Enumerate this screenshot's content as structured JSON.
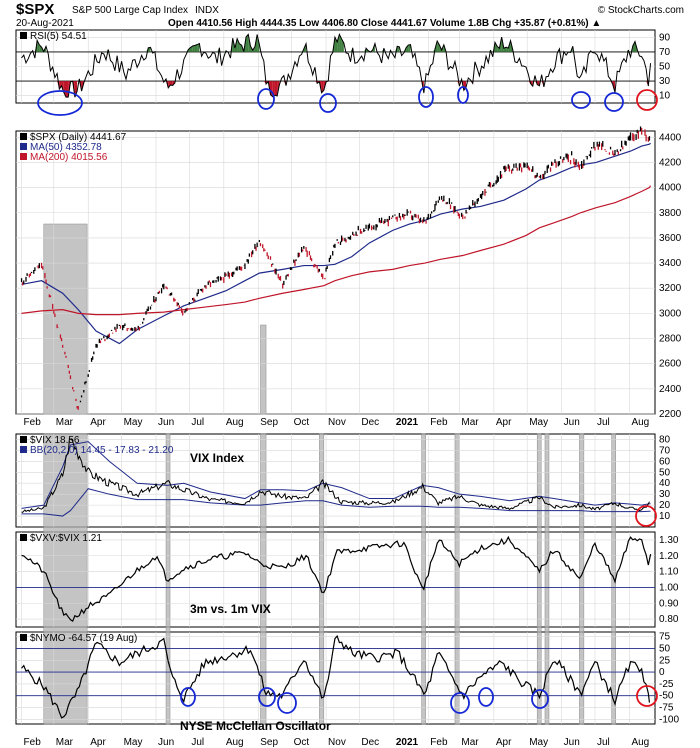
{
  "header": {
    "symbol": "$SPX",
    "description": "S&P 500 Large Cap Index",
    "exchange": "INDX",
    "date": "20-Aug-2021",
    "watermark": "© StockCharts.com",
    "quote": "Open 4410.56  High 4444.35  Low 4406.80  Close 4441.67  Volume 1.8B  Chg +35.87 (+0.81%) ▲"
  },
  "colors": {
    "price_line": "#000000",
    "ma50": "#1f2a8a",
    "ma200": "#c0162a",
    "bar_up": "#000000",
    "bar_down": "#c0162a",
    "rsi_overbought": "#3f7f3f",
    "rsi_oversold": "#c0162a",
    "highlight": "#b0b0b0",
    "circle_blue": "#1428d6",
    "circle_red": "#e0141e"
  },
  "x_axis": {
    "ticks": [
      "Feb",
      "Mar",
      "Apr",
      "May",
      "Jun",
      "Jul",
      "Aug",
      "Sep",
      "Oct",
      "Nov",
      "Dec",
      "2021",
      "Feb",
      "Mar",
      "Apr",
      "May",
      "Jun",
      "Jul",
      "Aug"
    ]
  },
  "highlight_bands": [
    {
      "start": "2020-02-21",
      "end": "2020-03-31"
    },
    {
      "start": "2020-06-10",
      "end": "2020-06-12"
    },
    {
      "start": "2020-09-03",
      "end": "2020-09-08"
    },
    {
      "start": "2020-10-26",
      "end": "2020-10-30"
    },
    {
      "start": "2021-01-26",
      "end": "2021-01-29"
    },
    {
      "start": "2021-02-25",
      "end": "2021-03-01"
    },
    {
      "start": "2021-05-10",
      "end": "2021-05-12"
    },
    {
      "start": "2021-05-17",
      "end": "2021-05-18"
    },
    {
      "start": "2021-06-17",
      "end": "2021-06-21"
    },
    {
      "start": "2021-07-16",
      "end": "2021-07-19"
    }
  ],
  "chart_data": [
    {
      "type": "line",
      "panel": "rsi",
      "legend": "RSI(5) 54.51",
      "ylim": [
        0,
        100
      ],
      "yticks": [
        10,
        30,
        50,
        70,
        90
      ],
      "reference_lines": [
        30,
        70
      ],
      "x": [
        "2020-02-01",
        "2020-02-20",
        "2020-03-10",
        "2020-03-23",
        "2020-04-15",
        "2020-05-05",
        "2020-05-25",
        "2020-06-11",
        "2020-06-26",
        "2020-07-10",
        "2020-07-25",
        "2020-08-10",
        "2020-08-31",
        "2020-09-10",
        "2020-09-23",
        "2020-10-12",
        "2020-10-30",
        "2020-11-10",
        "2020-11-25",
        "2020-12-10",
        "2020-12-28",
        "2021-01-15",
        "2021-01-29",
        "2021-02-10",
        "2021-03-04",
        "2021-03-20",
        "2021-04-10",
        "2021-04-25",
        "2021-05-12",
        "2021-05-25",
        "2021-06-10",
        "2021-06-18",
        "2021-07-01",
        "2021-07-19",
        "2021-08-01",
        "2021-08-12",
        "2021-08-19",
        "2021-08-20"
      ],
      "values": [
        62,
        80,
        15,
        18,
        72,
        40,
        78,
        20,
        52,
        80,
        60,
        76,
        88,
        20,
        25,
        80,
        18,
        90,
        65,
        74,
        60,
        72,
        22,
        82,
        25,
        52,
        84,
        60,
        22,
        58,
        78,
        24,
        80,
        24,
        74,
        68,
        28,
        54.51
      ]
    },
    {
      "type": "line",
      "panel": "price",
      "legend": [
        "$SPX (Daily) 4441.67",
        "MA(50) 4352.78",
        "MA(200) 4015.56"
      ],
      "ylim": [
        2200,
        4450
      ],
      "yticks": [
        2200,
        2400,
        2600,
        2800,
        3000,
        3200,
        3400,
        3600,
        3800,
        4000,
        4200,
        4400
      ],
      "x": [
        "2020-02-01",
        "2020-02-19",
        "2020-03-09",
        "2020-03-23",
        "2020-04-08",
        "2020-04-29",
        "2020-05-15",
        "2020-06-08",
        "2020-06-26",
        "2020-07-15",
        "2020-08-03",
        "2020-08-20",
        "2020-09-02",
        "2020-09-23",
        "2020-10-12",
        "2020-10-30",
        "2020-11-09",
        "2020-11-24",
        "2020-12-10",
        "2020-12-31",
        "2021-01-15",
        "2021-01-29",
        "2021-02-12",
        "2021-03-04",
        "2021-03-20",
        "2021-04-10",
        "2021-04-30",
        "2021-05-12",
        "2021-05-25",
        "2021-06-10",
        "2021-06-18",
        "2021-07-02",
        "2021-07-19",
        "2021-08-02",
        "2021-08-12",
        "2021-08-19",
        "2021-08-20"
      ],
      "series": [
        {
          "name": "$SPX (Daily) 4441.67",
          "values": [
            3250,
            3386,
            2750,
            2237,
            2750,
            2900,
            2870,
            3230,
            3010,
            3220,
            3290,
            3390,
            3580,
            3230,
            3530,
            3270,
            3550,
            3630,
            3680,
            3756,
            3790,
            3715,
            3935,
            3770,
            3930,
            4130,
            4190,
            4063,
            4200,
            4240,
            4165,
            4350,
            4260,
            4390,
            4460,
            4400,
            4441.67
          ]
        },
        {
          "name": "MA(50) 4352.78",
          "values": [
            3230,
            3260,
            3160,
            3030,
            2860,
            2760,
            2870,
            2980,
            3060,
            3120,
            3180,
            3260,
            3320,
            3350,
            3380,
            3380,
            3390,
            3450,
            3560,
            3660,
            3710,
            3740,
            3790,
            3830,
            3850,
            3900,
            3990,
            4060,
            4100,
            4160,
            4180,
            4200,
            4250,
            4290,
            4330,
            4345,
            4352.78
          ]
        },
        {
          "name": "MA(200) 4015.56",
          "values": [
            3000,
            3020,
            3030,
            3000,
            2990,
            2990,
            3000,
            3010,
            3030,
            3050,
            3070,
            3090,
            3120,
            3160,
            3190,
            3220,
            3260,
            3300,
            3330,
            3350,
            3380,
            3400,
            3430,
            3460,
            3500,
            3550,
            3620,
            3680,
            3720,
            3770,
            3800,
            3840,
            3880,
            3930,
            3970,
            4000,
            4015.56
          ]
        }
      ]
    },
    {
      "type": "line",
      "panel": "vix",
      "legend": [
        "$VIX 18.56",
        "BB(20,2.0) 14.45 - 17.83 - 21.20"
      ],
      "annotation": "VIX Index",
      "ylim": [
        0,
        85
      ],
      "yticks": [
        10,
        20,
        30,
        40,
        50,
        60,
        70,
        80
      ],
      "x": [
        "2020-02-01",
        "2020-02-21",
        "2020-03-09",
        "2020-03-16",
        "2020-04-01",
        "2020-04-20",
        "2020-05-15",
        "2020-06-11",
        "2020-06-26",
        "2020-07-20",
        "2020-08-20",
        "2020-09-03",
        "2020-09-23",
        "2020-10-14",
        "2020-10-29",
        "2020-11-15",
        "2020-12-10",
        "2021-01-01",
        "2021-01-27",
        "2021-02-10",
        "2021-03-01",
        "2021-03-20",
        "2021-04-15",
        "2021-05-12",
        "2021-05-25",
        "2021-06-18",
        "2021-07-01",
        "2021-07-19",
        "2021-08-01",
        "2021-08-12",
        "2021-08-19",
        "2021-08-20"
      ],
      "series": [
        {
          "name": "$VIX 18.56",
          "values": [
            14,
            17,
            48,
            82,
            50,
            40,
            30,
            40,
            34,
            25,
            22,
            33,
            28,
            26,
            40,
            23,
            22,
            23,
            37,
            22,
            28,
            20,
            17,
            27,
            18,
            20,
            16,
            22,
            17,
            16,
            21.7,
            18.56
          ]
        },
        {
          "name": "BB upper",
          "values": [
            17,
            20,
            55,
            75,
            78,
            60,
            40,
            38,
            40,
            32,
            26,
            34,
            34,
            33,
            40,
            36,
            26,
            26,
            38,
            36,
            30,
            28,
            24,
            28,
            26,
            22,
            20,
            22,
            21,
            20,
            21.2,
            21.2
          ]
        },
        {
          "name": "BB lower",
          "values": [
            12,
            12,
            10,
            15,
            35,
            30,
            25,
            25,
            25,
            22,
            20,
            20,
            22,
            24,
            24,
            20,
            18,
            19,
            19,
            18,
            18,
            17,
            15,
            15,
            15,
            15,
            14,
            14,
            14,
            14,
            14.45,
            14.45
          ]
        }
      ]
    },
    {
      "type": "line",
      "panel": "vxv_vix",
      "legend": "$VXV:$VIX 1.21",
      "annotation": "3m vs. 1m VIX",
      "ylim": [
        0.75,
        1.35
      ],
      "yticks": [
        0.8,
        0.9,
        1.0,
        1.1,
        1.2,
        1.3
      ],
      "reference_lines": [
        1.0
      ],
      "x": [
        "2020-02-01",
        "2020-02-21",
        "2020-03-10",
        "2020-03-18",
        "2020-04-01",
        "2020-04-20",
        "2020-05-10",
        "2020-06-01",
        "2020-06-11",
        "2020-06-26",
        "2020-07-20",
        "2020-08-20",
        "2020-09-03",
        "2020-09-23",
        "2020-10-14",
        "2020-10-30",
        "2020-11-10",
        "2020-12-10",
        "2021-01-10",
        "2021-01-27",
        "2021-02-10",
        "2021-03-01",
        "2021-03-20",
        "2021-04-15",
        "2021-05-12",
        "2021-05-25",
        "2021-06-18",
        "2021-07-01",
        "2021-07-19",
        "2021-08-01",
        "2021-08-12",
        "2021-08-19",
        "2021-08-20"
      ],
      "values": [
        1.22,
        1.1,
        0.82,
        0.8,
        0.88,
        0.95,
        1.08,
        1.2,
        1.05,
        1.12,
        1.18,
        1.22,
        1.15,
        1.12,
        1.2,
        0.96,
        1.22,
        1.25,
        1.28,
        0.98,
        1.3,
        1.15,
        1.25,
        1.3,
        1.1,
        1.24,
        1.05,
        1.28,
        1.04,
        1.3,
        1.31,
        1.12,
        1.21
      ]
    },
    {
      "type": "line",
      "panel": "nymo",
      "legend": "$NYMO -64.57 (19 Aug)",
      "annotation": "NYSE McClellan Oscillator",
      "ylim": [
        -110,
        85
      ],
      "yticks": [
        -100,
        -75,
        -50,
        -25,
        0,
        25,
        50,
        75
      ],
      "reference_lines": [
        -50,
        0,
        50
      ],
      "x": [
        "2020-02-01",
        "2020-02-21",
        "2020-03-09",
        "2020-03-23",
        "2020-04-08",
        "2020-04-29",
        "2020-05-15",
        "2020-06-08",
        "2020-06-15",
        "2020-06-26",
        "2020-07-15",
        "2020-08-05",
        "2020-08-25",
        "2020-09-08",
        "2020-09-23",
        "2020-10-12",
        "2020-10-30",
        "2020-11-10",
        "2020-11-25",
        "2020-12-15",
        "2021-01-05",
        "2021-01-29",
        "2021-02-10",
        "2021-03-04",
        "2021-03-20",
        "2021-04-08",
        "2021-04-25",
        "2021-05-12",
        "2021-05-25",
        "2021-06-18",
        "2021-07-01",
        "2021-07-19",
        "2021-08-01",
        "2021-08-12",
        "2021-08-19"
      ],
      "values": [
        10,
        -30,
        -95,
        -40,
        60,
        20,
        40,
        65,
        -10,
        -55,
        20,
        35,
        50,
        -45,
        -50,
        30,
        -60,
        75,
        40,
        30,
        40,
        -50,
        40,
        -50,
        -10,
        20,
        -20,
        -50,
        30,
        -45,
        20,
        -60,
        15,
        10,
        -64.57
      ]
    }
  ]
}
